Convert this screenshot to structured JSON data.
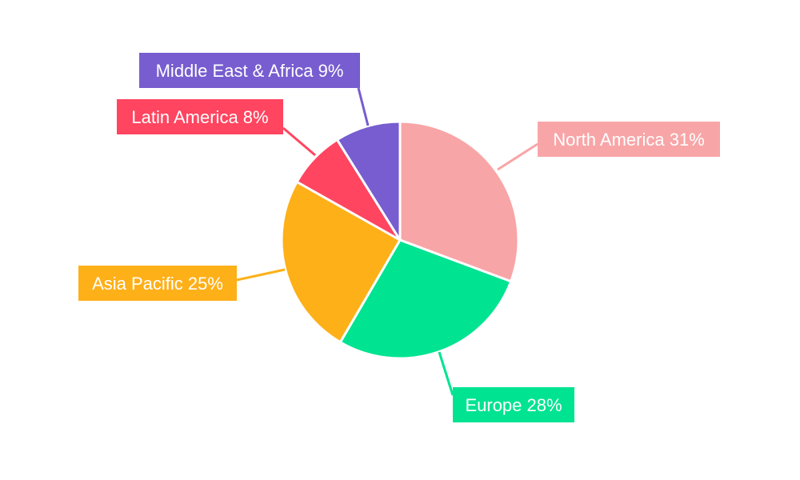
{
  "chart_data": {
    "type": "pie",
    "title": "",
    "categories": [
      "North America",
      "Europe",
      "Asia Pacific",
      "Latin America",
      "Middle East & Africa"
    ],
    "values": [
      31,
      28,
      25,
      8,
      9
    ],
    "unit": "%",
    "labels": [
      "North America 31%",
      "Europe 28%",
      "Asia Pacific 25%",
      "Latin America 8%",
      "Middle East & Africa 9%"
    ],
    "colors": [
      "#f8a5a7",
      "#00e391",
      "#feb019",
      "#ff4560",
      "#775dd0"
    ],
    "start_angle": "12 o'clock",
    "direction": "clockwise",
    "legend": "none"
  }
}
